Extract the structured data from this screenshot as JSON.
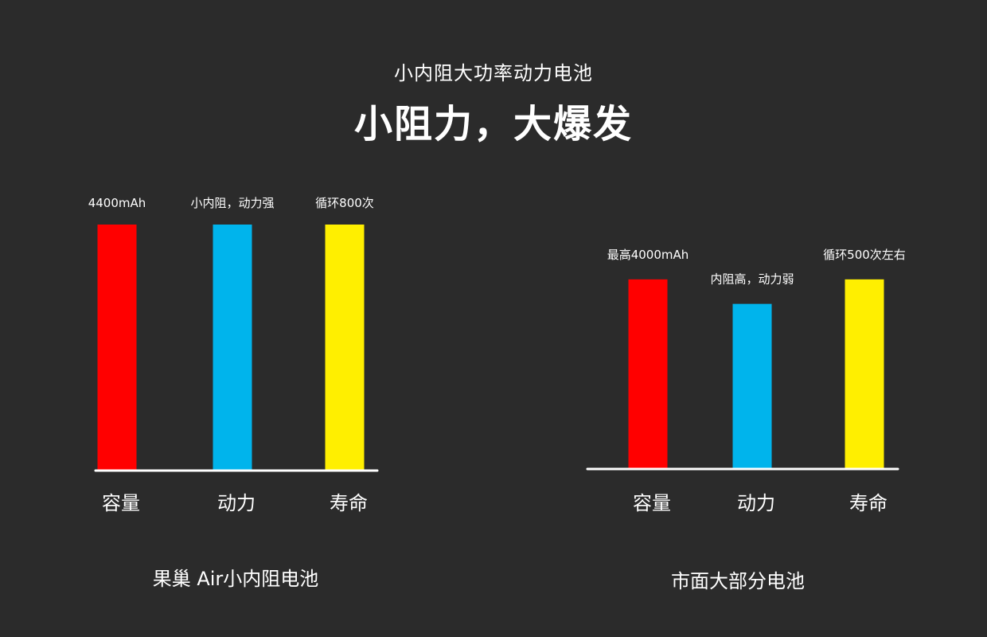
{
  "header": {
    "subtitle": "小内阻大功率动力电池",
    "title": "小阻力，大爆发"
  },
  "colors": {
    "background": "#2b2b2b",
    "red": "#ff0000",
    "blue": "#00b4ec",
    "yellow": "#ffef00",
    "text": "#ffffff",
    "baseline": "#ffffff"
  },
  "chart_data": [
    {
      "type": "bar",
      "title": "果巢 Air小内阻电池",
      "categories": [
        "容量",
        "动力",
        "寿命"
      ],
      "values": [
        100,
        100,
        100
      ],
      "data_labels": [
        "4400mAh",
        "小内阻，动力强",
        "循环800次"
      ],
      "bar_colors": [
        "#ff0000",
        "#00b4ec",
        "#ffef00"
      ],
      "ylim": [
        0,
        100
      ],
      "grid": false
    },
    {
      "type": "bar",
      "title": "市面大部分电池",
      "categories": [
        "容量",
        "动力",
        "寿命"
      ],
      "values": [
        77,
        67,
        77
      ],
      "data_labels": [
        "最高4000mAh",
        "内阻高，动力弱",
        "循环500次左右"
      ],
      "bar_colors": [
        "#ff0000",
        "#00b4ec",
        "#ffef00"
      ],
      "ylim": [
        0,
        100
      ],
      "grid": false
    }
  ]
}
